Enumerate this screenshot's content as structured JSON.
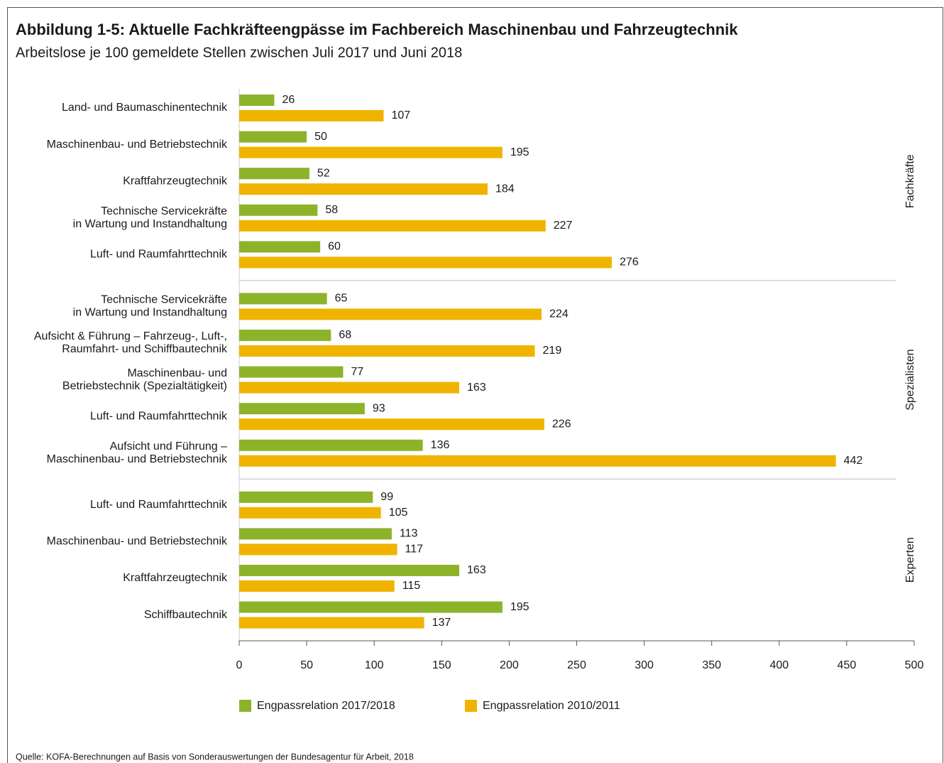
{
  "chart_data": {
    "type": "bar",
    "orientation": "horizontal",
    "title": "Abbildung 1-5: Aktuelle Fachkräfteengpässe im Fachbereich Maschinenbau und Fahrzeugtechnik",
    "subtitle": "Arbeitslose je 100 gemeldete Stellen zwischen Juli 2017 und Juni 2018",
    "source": "Quelle: KOFA-Berechnungen auf Basis von Sonderauswertungen der Bundesagentur für Arbeit, 2018",
    "groups": [
      {
        "name": "Fachkräfte",
        "categories": [
          [
            "Land- und Baumaschinentechnik"
          ],
          [
            "Maschinenbau- und Betriebstechnik"
          ],
          [
            "Kraftfahrzeugtechnik"
          ],
          [
            "Technische Servicekräfte",
            "in Wartung und Instandhaltung"
          ],
          [
            "Luft- und Raumfahrttechnik"
          ]
        ]
      },
      {
        "name": "Spezialisten",
        "categories": [
          [
            "Technische Servicekräfte",
            "in Wartung und Instandhaltung"
          ],
          [
            "Aufsicht & Führung – Fahrzeug-, Luft-,",
            "Raumfahrt- und Schiffbautechnik"
          ],
          [
            "Maschinenbau- und",
            "Betriebstechnik (Spezialtätigkeit)"
          ],
          [
            "Luft- und Raumfahrttechnik"
          ],
          [
            "Aufsicht und Führung –",
            "Maschinenbau- und Betriebstechnik"
          ]
        ]
      },
      {
        "name": "Experten",
        "categories": [
          [
            "Luft- und Raumfahrttechnik"
          ],
          [
            "Maschinenbau- und Betriebstechnik"
          ],
          [
            "Kraftfahrzeugtechnik"
          ],
          [
            "Schiffbautechnik"
          ]
        ]
      }
    ],
    "series": [
      {
        "name": "Engpassrelation 2017/2018",
        "color": "#8db32b",
        "values": [
          26,
          50,
          52,
          58,
          60,
          65,
          68,
          77,
          93,
          136,
          99,
          113,
          163,
          195
        ]
      },
      {
        "name": "Engpassrelation 2010/2011",
        "color": "#f0b400",
        "values": [
          107,
          195,
          184,
          227,
          276,
          224,
          219,
          163,
          226,
          442,
          105,
          117,
          115,
          137
        ]
      }
    ],
    "xlim": [
      0,
      500
    ],
    "xticks": [
      0,
      50,
      100,
      150,
      200,
      250,
      300,
      350,
      400,
      450,
      500
    ],
    "legend": "bottom-left"
  }
}
